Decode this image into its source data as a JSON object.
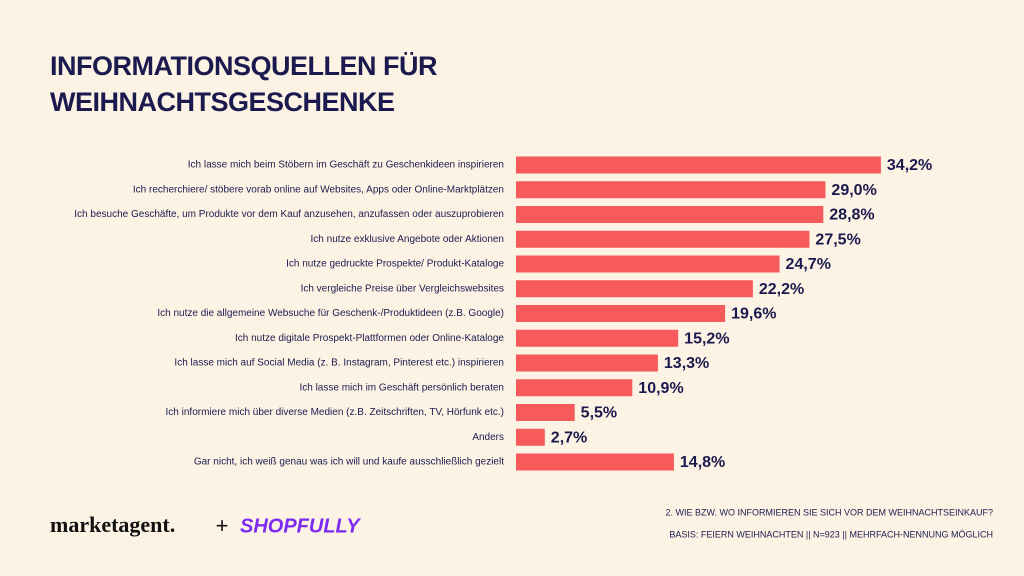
{
  "chart_data": {
    "type": "hbar",
    "title": "INFORMATIONSQUELLEN FÜR WEIHNACHTSGESCHENKE",
    "categories": [
      "Ich lasse mich beim Stöbern im Geschäft zu Geschenkideen inspirieren",
      "Ich recherchiere/ stöbere vorab online auf Websites, Apps oder Online-Marktplätzen",
      "Ich besuche Geschäfte, um Produkte vor dem Kauf anzusehen, anzufassen oder auszuprobieren",
      "Ich nutze exklusive Angebote oder Aktionen",
      "Ich nutze gedruckte Prospekte/ Produkt-Kataloge",
      "Ich vergleiche Preise über Vergleichswebsites",
      "Ich nutze die allgemeine Websuche für Geschenk-/Produktideen (z.B. Google)",
      "Ich nutze digitale Prospekt-Plattformen oder Online-Kataloge",
      "Ich lasse mich auf Social Media (z. B. Instagram, Pinterest etc.) inspirieren",
      "Ich lasse mich im Geschäft persönlich beraten",
      "Ich informiere mich über diverse Medien (z.B. Zeitschriften, TV, Hörfunk etc.)",
      "Anders",
      "Gar nicht, ich weiß genau was ich will und kaufe ausschließlich gezielt"
    ],
    "values": [
      34.2,
      29.0,
      28.8,
      27.5,
      24.7,
      22.2,
      19.6,
      15.2,
      13.3,
      10.9,
      5.5,
      2.7,
      14.8
    ],
    "value_labels": [
      "34,2%",
      "29,0%",
      "28,8%",
      "27,5%",
      "24,7%",
      "22,2%",
      "19,6%",
      "15,2%",
      "13,3%",
      "10,9%",
      "5,5%",
      "2,7%",
      "14,8%"
    ],
    "color": "#f65a5a",
    "notes": [
      "2. WIE BZW. WO INFORMIEREN SIE SICH VOR DEM WEIHNACHTSEINKAUF?",
      "BASIS: FEIERN WEIHNACHTEN || N=923 || MEHRFACH-NENNUNG MÖGLICH"
    ],
    "logos": [
      "marketagent.",
      "+",
      "SHOPFULLY"
    ]
  }
}
